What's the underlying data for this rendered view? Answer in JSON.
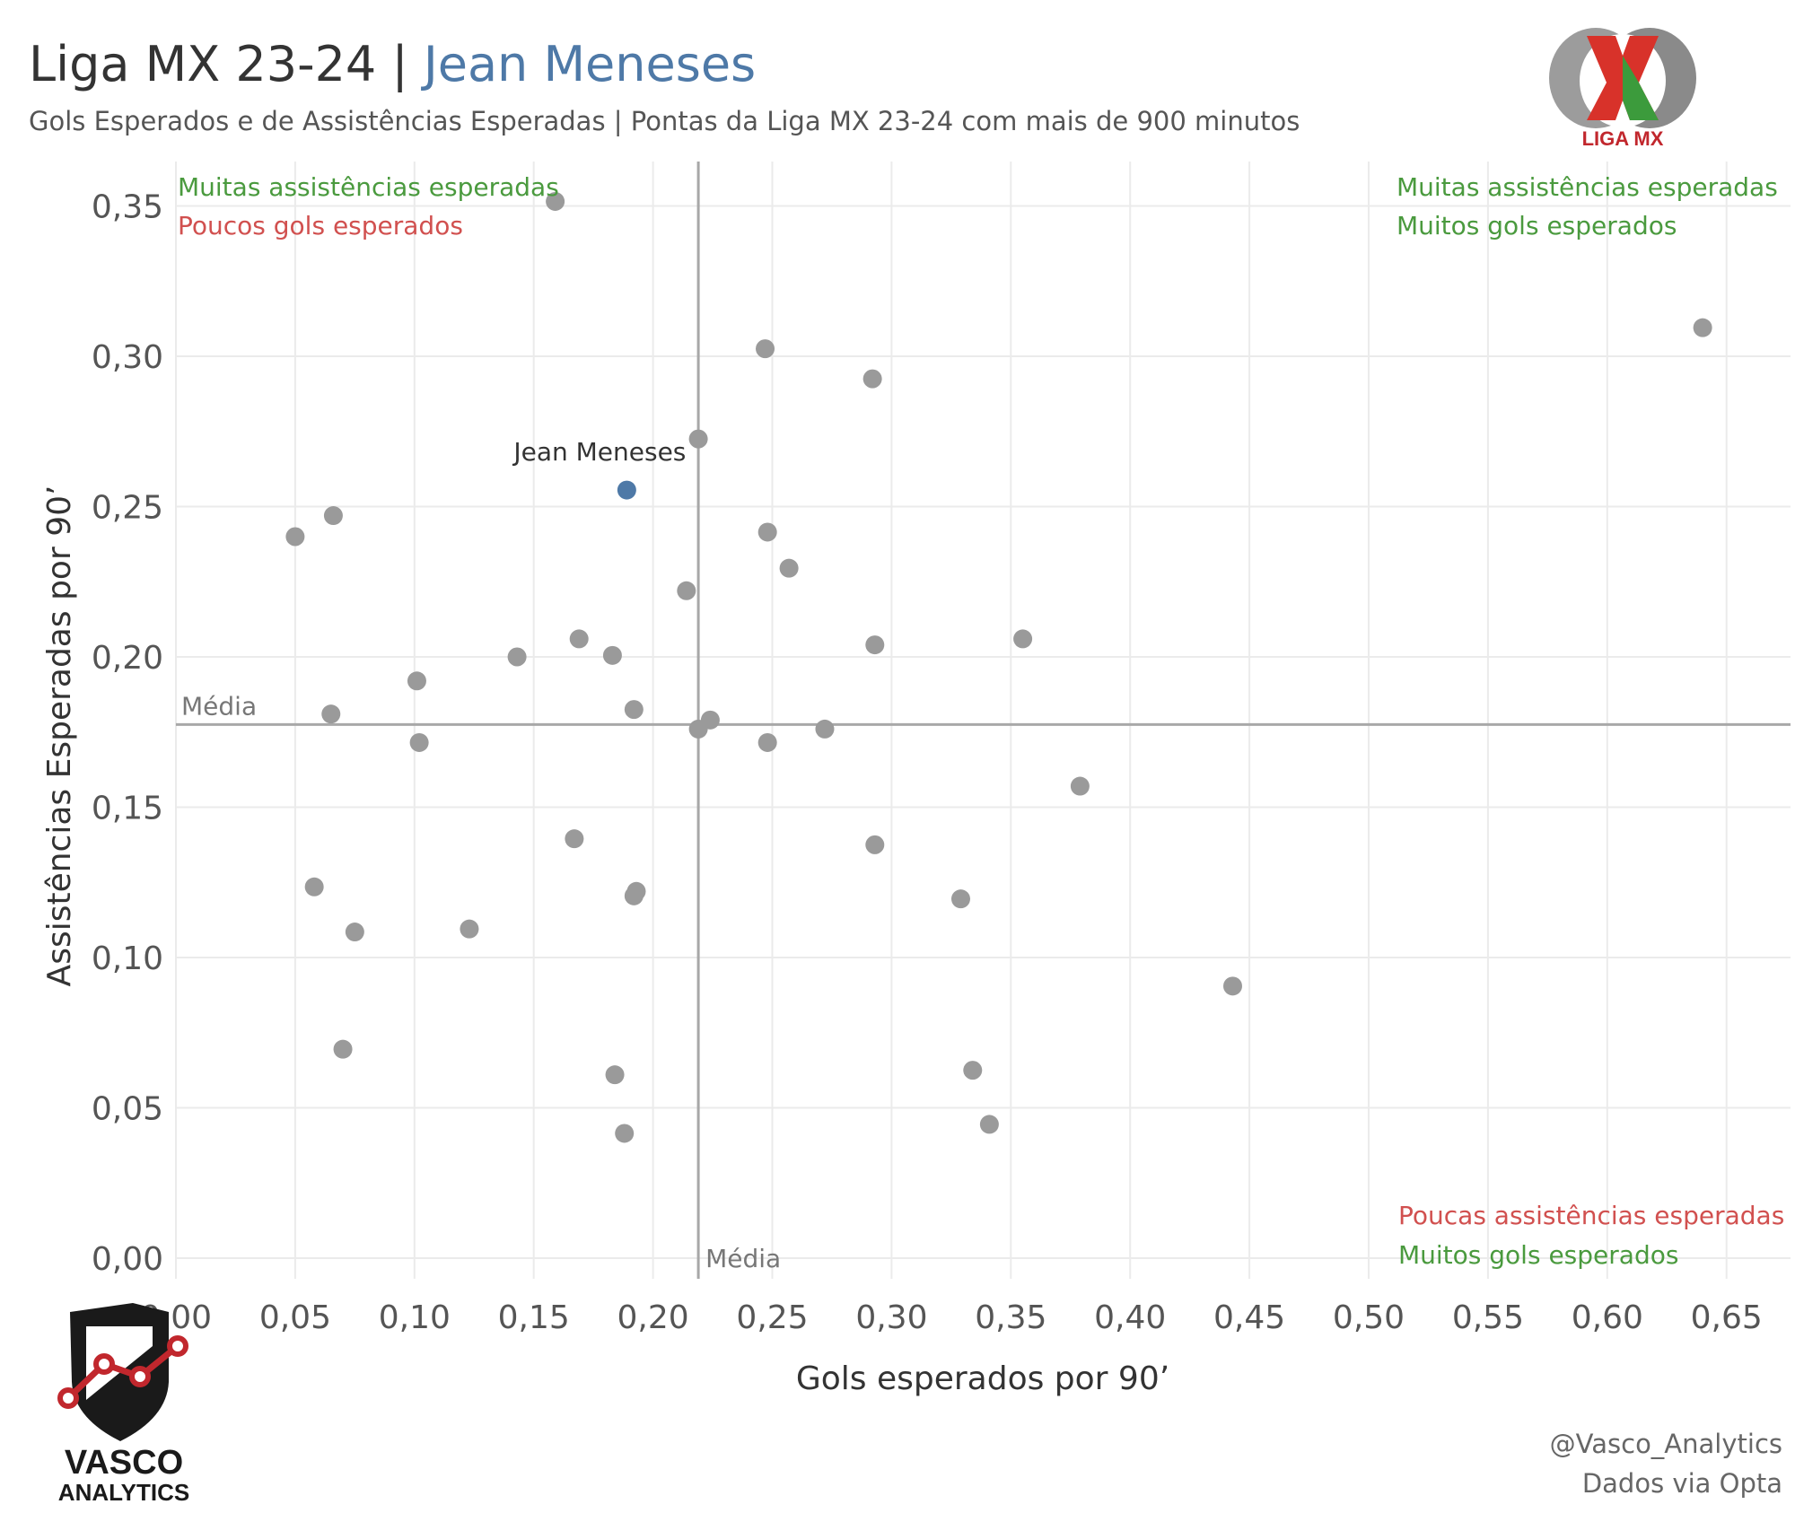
{
  "header": {
    "title_main": "Liga MX 23-24 | ",
    "title_player": "Jean Meneses",
    "subtitle": "Gols Esperados e de Assistências Esperadas  | Pontas da Liga MX 23-24 com mais de 900 minutos"
  },
  "quadrants": {
    "top_left_1": "Muitas assistências esperadas",
    "top_left_2": "Poucos gols esperados",
    "top_right_1": "Muitas assistências esperadas",
    "top_right_2": "Muitos gols esperados",
    "bottom_right_1": "Poucas assistências esperadas",
    "bottom_right_2": "Muitos gols esperados"
  },
  "footer": {
    "handle": "@Vasco_Analytics",
    "source": "Dados via Opta"
  },
  "logos": {
    "liga": "LIGA MX",
    "vasco_1": "VASCO",
    "vasco_2": "ANALYTICS"
  },
  "colors": {
    "highlight": "#4e79a7",
    "points": "#9a9a9a",
    "green": "#4a9a3e",
    "red": "#d1504f"
  },
  "chart_data": {
    "type": "scatter",
    "xlabel": "Gols esperados por 90’",
    "ylabel": "Assistências Esperadas por 90’",
    "xlim": [
      0,
      0.68
    ],
    "ylim": [
      0,
      0.37
    ],
    "x_ticks": [
      "0,00",
      "0,05",
      "0,10",
      "0,15",
      "0,20",
      "0,25",
      "0,30",
      "0,35",
      "0,40",
      "0,45",
      "0,50",
      "0,55",
      "0,60",
      "0,65"
    ],
    "y_ticks": [
      "0,00",
      "0,05",
      "0,10",
      "0,15",
      "0,20",
      "0,25",
      "0,30",
      "0,35"
    ],
    "grid": true,
    "averages": {
      "x": 0.219,
      "y": 0.1775,
      "label": "Média"
    },
    "highlight": {
      "name": "Jean Meneses",
      "x": 0.189,
      "y": 0.2555
    },
    "points": [
      {
        "x": 0.159,
        "y": 0.3515
      },
      {
        "x": 0.64,
        "y": 0.3095
      },
      {
        "x": 0.247,
        "y": 0.3025
      },
      {
        "x": 0.292,
        "y": 0.2925
      },
      {
        "x": 0.219,
        "y": 0.2725
      },
      {
        "x": 0.066,
        "y": 0.247
      },
      {
        "x": 0.05,
        "y": 0.24
      },
      {
        "x": 0.248,
        "y": 0.2415
      },
      {
        "x": 0.257,
        "y": 0.2295
      },
      {
        "x": 0.214,
        "y": 0.222
      },
      {
        "x": 0.169,
        "y": 0.206
      },
      {
        "x": 0.355,
        "y": 0.206
      },
      {
        "x": 0.293,
        "y": 0.204
      },
      {
        "x": 0.143,
        "y": 0.2
      },
      {
        "x": 0.183,
        "y": 0.2005
      },
      {
        "x": 0.101,
        "y": 0.192
      },
      {
        "x": 0.065,
        "y": 0.181
      },
      {
        "x": 0.192,
        "y": 0.1825
      },
      {
        "x": 0.224,
        "y": 0.179
      },
      {
        "x": 0.219,
        "y": 0.176
      },
      {
        "x": 0.272,
        "y": 0.176
      },
      {
        "x": 0.102,
        "y": 0.1715
      },
      {
        "x": 0.248,
        "y": 0.1715
      },
      {
        "x": 0.379,
        "y": 0.157
      },
      {
        "x": 0.167,
        "y": 0.1395
      },
      {
        "x": 0.293,
        "y": 0.1375
      },
      {
        "x": 0.058,
        "y": 0.1235
      },
      {
        "x": 0.192,
        "y": 0.1205
      },
      {
        "x": 0.193,
        "y": 0.122
      },
      {
        "x": 0.329,
        "y": 0.1195
      },
      {
        "x": 0.075,
        "y": 0.1085
      },
      {
        "x": 0.123,
        "y": 0.1095
      },
      {
        "x": 0.443,
        "y": 0.0905
      },
      {
        "x": 0.07,
        "y": 0.0695
      },
      {
        "x": 0.184,
        "y": 0.061
      },
      {
        "x": 0.334,
        "y": 0.0625
      },
      {
        "x": 0.188,
        "y": 0.0415
      },
      {
        "x": 0.341,
        "y": 0.0445
      }
    ]
  }
}
